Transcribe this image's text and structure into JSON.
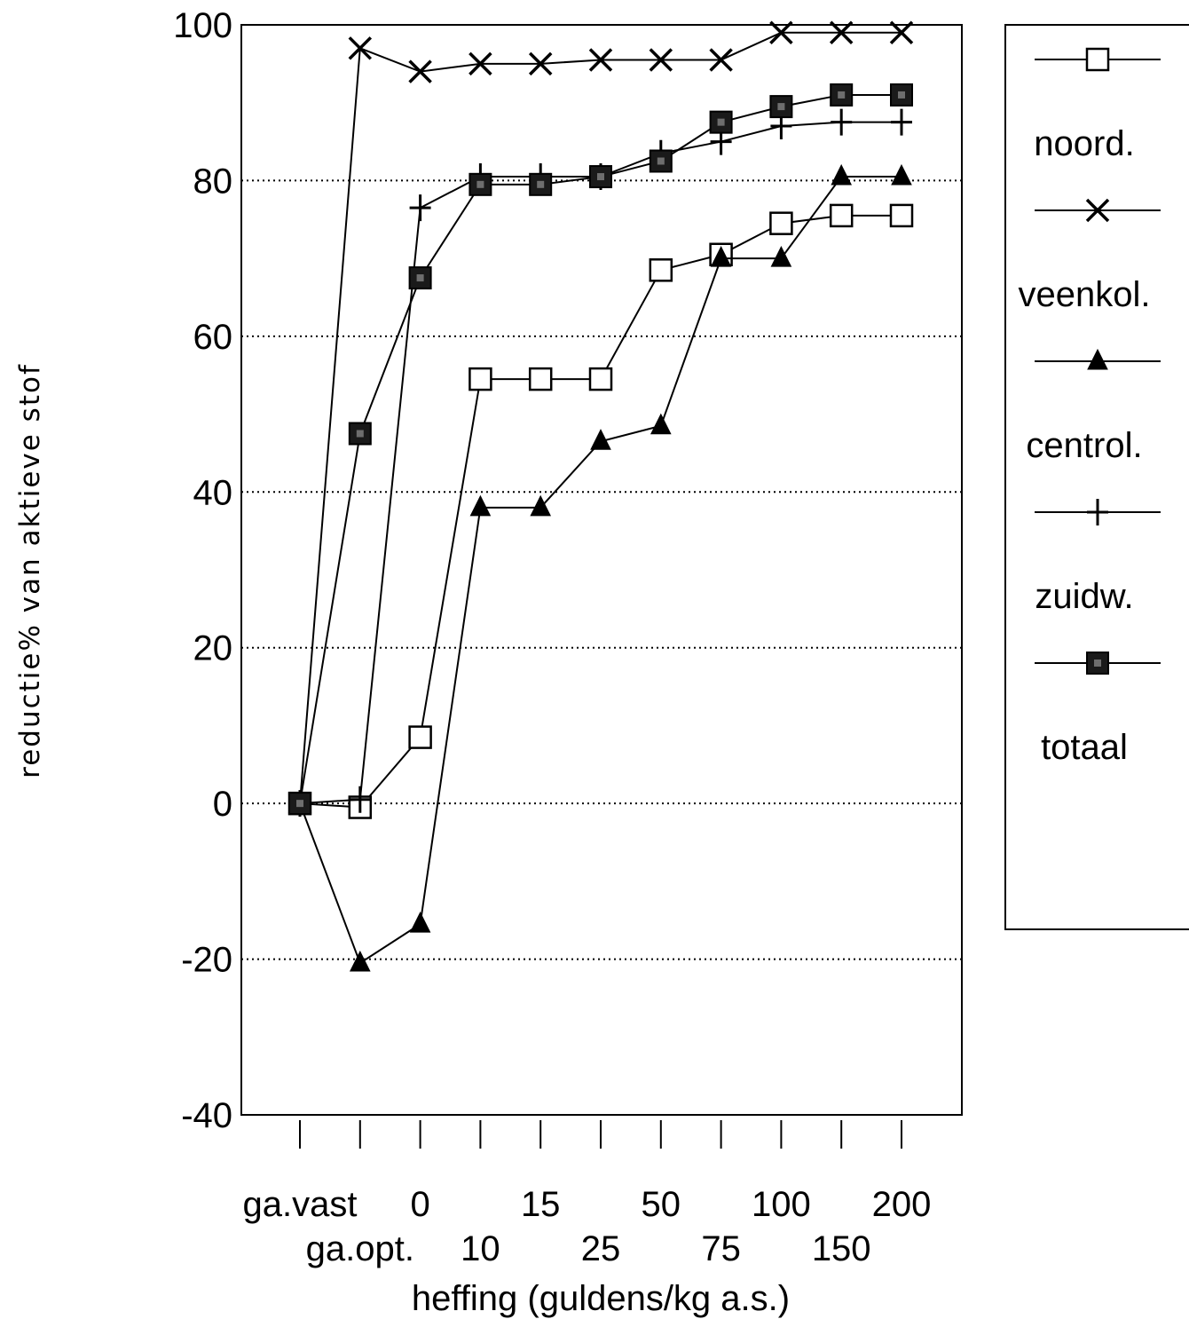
{
  "chart_data": {
    "type": "line",
    "title": "",
    "xlabel": "heffing (guldens/kg a.s.)",
    "ylabel": "reductie% van aktieve stof",
    "ylim": [
      -40,
      100
    ],
    "yticks": [
      -40,
      -20,
      0,
      20,
      40,
      60,
      80,
      100
    ],
    "grid": "horizontal dotted",
    "legend_position": "right",
    "categories": [
      "ga.vast",
      "ga.opt.",
      "0",
      "10",
      "15",
      "25",
      "50",
      "75",
      "100",
      "150",
      "200"
    ],
    "category_label_rows": [
      "top",
      "bottom",
      "top",
      "bottom",
      "top",
      "bottom",
      "top",
      "bottom",
      "top",
      "bottom",
      "top"
    ],
    "series": [
      {
        "name": "noord.",
        "marker": "open-square",
        "values": [
          0,
          -0.5,
          8.5,
          54.5,
          54.5,
          54.5,
          68.5,
          70.5,
          74.5,
          75.5,
          75.5
        ]
      },
      {
        "name": "veenkol.",
        "marker": "x",
        "values": [
          0,
          97,
          94,
          95,
          95,
          95.5,
          95.5,
          95.5,
          99,
          99,
          99
        ]
      },
      {
        "name": "centrol.",
        "marker": "filled-triangle",
        "values": [
          0,
          -20.5,
          -15.5,
          38,
          38,
          46.5,
          48.5,
          70,
          70,
          80.5,
          80.5
        ]
      },
      {
        "name": "zuidw.",
        "marker": "plus",
        "values": [
          0,
          0.5,
          76.5,
          80.5,
          80.5,
          80.5,
          83.5,
          85,
          87,
          87.5,
          87.5
        ]
      },
      {
        "name": "totaal",
        "marker": "filled-square",
        "values": [
          0,
          47.5,
          67.5,
          79.5,
          79.5,
          80.5,
          82.5,
          87.5,
          89.5,
          91,
          91
        ]
      }
    ]
  },
  "colors": {
    "ink": "#000000",
    "background": "#ffffff"
  }
}
